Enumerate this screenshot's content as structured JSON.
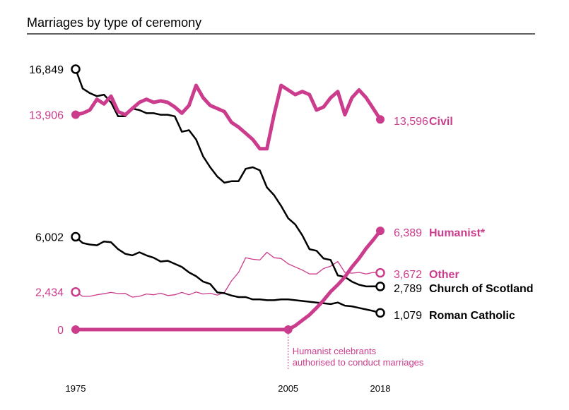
{
  "chart_data": {
    "type": "line",
    "title": "Marriages by type of ceremony",
    "xlabel": "",
    "ylabel": "",
    "x_ticks": [
      "1975",
      "2005",
      "2018"
    ],
    "x": [
      1975,
      1976,
      1977,
      1978,
      1979,
      1980,
      1981,
      1982,
      1983,
      1984,
      1985,
      1986,
      1987,
      1988,
      1989,
      1990,
      1991,
      1992,
      1993,
      1994,
      1995,
      1996,
      1997,
      1998,
      1999,
      2000,
      2001,
      2002,
      2003,
      2004,
      2005,
      2006,
      2007,
      2008,
      2009,
      2010,
      2011,
      2012,
      2013,
      2014,
      2015,
      2016,
      2017,
      2018
    ],
    "ylim": [
      0,
      16849
    ],
    "start_labels": [
      "16,849",
      "13,906",
      "6,002",
      "2,434",
      "0"
    ],
    "colors": {
      "religious": "#000000",
      "civil": "#cc3c8c"
    },
    "series": [
      {
        "name": "Civil",
        "color": "#cc3c8c",
        "end_label": "13,596",
        "values": [
          13906,
          14000,
          14200,
          14900,
          14600,
          15100,
          14100,
          13900,
          14300,
          14700,
          14900,
          14700,
          14800,
          14700,
          14400,
          14000,
          14500,
          15800,
          15000,
          14500,
          14300,
          14100,
          13400,
          13100,
          12700,
          12300,
          11700,
          11700,
          13900,
          15800,
          15500,
          15200,
          15400,
          15200,
          14200,
          14400,
          15000,
          15400,
          13900,
          15000,
          15500,
          15000,
          14300,
          13596
        ],
        "stroke_width": 5,
        "marker_fill": "filled"
      },
      {
        "name": "Church of Scotland",
        "color": "#000000",
        "end_label": "2,789",
        "values": [
          16849,
          15600,
          15300,
          15100,
          15200,
          14700,
          13800,
          13800,
          14300,
          14200,
          14000,
          14000,
          13900,
          13900,
          13800,
          12800,
          12900,
          12300,
          11200,
          10500,
          9900,
          9500,
          9600,
          9600,
          10400,
          10500,
          10300,
          9200,
          8700,
          8000,
          7200,
          6800,
          6100,
          5200,
          5100,
          4600,
          4500,
          3500,
          3400,
          3100,
          2900,
          2789,
          2800,
          2789
        ],
        "stroke_width": 2.5,
        "marker_fill": "open"
      },
      {
        "name": "Humanist*",
        "color": "#cc3c8c",
        "end_label": "6,389",
        "values": [
          0,
          0,
          0,
          0,
          0,
          0,
          0,
          0,
          0,
          0,
          0,
          0,
          0,
          0,
          0,
          0,
          0,
          0,
          0,
          0,
          0,
          0,
          0,
          0,
          0,
          0,
          0,
          0,
          0,
          0,
          0,
          250,
          600,
          950,
          1400,
          1900,
          2450,
          2900,
          3400,
          4050,
          4600,
          5250,
          5800,
          6389
        ],
        "stroke_width": 5,
        "marker_fill": "filled"
      },
      {
        "name": "Other",
        "color": "#cc3c8c",
        "end_label": "3,672",
        "values": [
          2434,
          2150,
          2150,
          2250,
          2320,
          2400,
          2330,
          2340,
          2100,
          2150,
          2300,
          2250,
          2350,
          2200,
          2250,
          2400,
          2250,
          2430,
          2300,
          2350,
          2230,
          2400,
          3150,
          3700,
          4650,
          4550,
          4500,
          5000,
          4650,
          4600,
          4250,
          4050,
          3850,
          3600,
          3600,
          3950,
          4100,
          4400,
          3700,
          3650,
          3700,
          3600,
          3700,
          3672
        ],
        "stroke_width": 1.3,
        "marker_fill": "open"
      },
      {
        "name": "Roman Catholic",
        "color": "#000000",
        "end_label": "1,079",
        "values": [
          6002,
          5600,
          5500,
          5450,
          5700,
          5650,
          5200,
          4900,
          4800,
          5000,
          4800,
          4650,
          4400,
          4450,
          4250,
          4050,
          3700,
          3450,
          3100,
          2950,
          2400,
          2350,
          2200,
          2100,
          2100,
          1950,
          1950,
          1900,
          1900,
          1950,
          1950,
          1900,
          1850,
          1800,
          1750,
          1700,
          1650,
          1750,
          1550,
          1500,
          1400,
          1300,
          1200,
          1079
        ],
        "stroke_width": 2.5,
        "marker_fill": "open"
      }
    ],
    "annotation": {
      "x": 2005,
      "text_lines": [
        "Humanist celebrants",
        "authorised to conduct marriages"
      ]
    },
    "grid": false,
    "legend": "direct labels at right"
  }
}
